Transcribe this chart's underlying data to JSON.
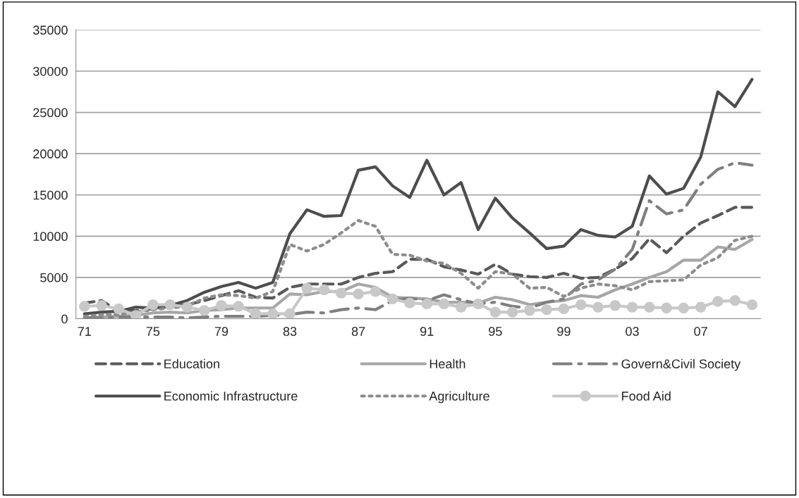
{
  "chart_data": {
    "type": "line",
    "categories": [
      "71",
      null,
      null,
      null,
      "75",
      null,
      null,
      null,
      "79",
      null,
      null,
      null,
      "83",
      null,
      null,
      null,
      "87",
      null,
      null,
      null,
      "91",
      null,
      null,
      null,
      "95",
      null,
      null,
      null,
      "99",
      null,
      null,
      null,
      "03",
      null,
      null,
      null,
      "07",
      null,
      null,
      null
    ],
    "series": [
      {
        "name": "Education",
        "color": "#595959",
        "line_style": "dashed",
        "values": [
          1900,
          2200,
          900,
          1000,
          1200,
          1500,
          1700,
          2200,
          2800,
          3400,
          2600,
          2500,
          3800,
          4200,
          4200,
          4200,
          5000,
          5500,
          5700,
          7200,
          7200,
          6300,
          5900,
          5400,
          6600,
          5400,
          5100,
          5000,
          5500,
          4900,
          5000,
          6000,
          7300,
          9700,
          8000,
          10000,
          11600,
          12500,
          13500,
          13500
        ]
      },
      {
        "name": "Health",
        "color": "#a6a6a6",
        "line_style": "solid",
        "values": [
          100,
          200,
          300,
          400,
          700,
          800,
          700,
          1000,
          1100,
          1300,
          1300,
          1300,
          3000,
          2900,
          3300,
          3300,
          4200,
          3800,
          2600,
          2500,
          2400,
          2000,
          2000,
          1900,
          2600,
          2300,
          1700,
          2000,
          2200,
          2800,
          2600,
          3500,
          4200,
          5000,
          5700,
          7100,
          7100,
          8700,
          8400,
          9600
        ]
      },
      {
        "name": "Govern&Civil Society",
        "color": "#7f7f7f",
        "line_style": "dashdot",
        "values": [
          100,
          100,
          200,
          200,
          200,
          200,
          100,
          200,
          300,
          300,
          300,
          400,
          500,
          800,
          700,
          1100,
          1300,
          1100,
          2200,
          2500,
          2200,
          2900,
          2300,
          1800,
          2000,
          1500,
          1300,
          2000,
          2400,
          4200,
          4700,
          6000,
          8400,
          14300,
          12700,
          13200,
          16300,
          18100,
          18900,
          18600
        ]
      },
      {
        "name": "Economic Infrastructure",
        "color": "#4d4d4d",
        "line_style": "solid",
        "values": [
          600,
          800,
          900,
          1400,
          1300,
          1600,
          2200,
          3200,
          3900,
          4400,
          3700,
          4400,
          10300,
          13200,
          12400,
          12500,
          18000,
          18400,
          16100,
          14700,
          19200,
          15000,
          16500,
          10800,
          14600,
          12200,
          10400,
          8500,
          8800,
          10800,
          10100,
          9900,
          11200,
          17300,
          15100,
          15800,
          19600,
          27500,
          25700,
          29000
        ]
      },
      {
        "name": "Agriculture",
        "color": "#8c8c8c",
        "line_style": "dotted",
        "values": [
          300,
          500,
          500,
          800,
          1100,
          1300,
          1500,
          2500,
          2900,
          2800,
          2500,
          3300,
          9000,
          8200,
          9000,
          10400,
          11900,
          11200,
          7800,
          7700,
          7000,
          6700,
          5500,
          3700,
          5700,
          5400,
          3700,
          3800,
          2700,
          3700,
          4200,
          4000,
          3500,
          4500,
          4600,
          4700,
          6500,
          7400,
          9500,
          10000
        ]
      },
      {
        "name": "Food Aid",
        "color": "#c8c8c8",
        "line_style": "solid",
        "marker": "circle",
        "values": [
          1500,
          1600,
          1200,
          400,
          1700,
          1700,
          1400,
          1000,
          1600,
          1500,
          600,
          600,
          600,
          3700,
          3500,
          3100,
          3000,
          3300,
          2400,
          1900,
          1800,
          1800,
          1400,
          1800,
          800,
          800,
          1000,
          1100,
          1200,
          1700,
          1400,
          1600,
          1400,
          1400,
          1300,
          1300,
          1400,
          2100,
          2200,
          1700
        ]
      }
    ],
    "ylim": [
      0,
      35000
    ],
    "yticks": [
      0,
      5000,
      10000,
      15000,
      20000,
      25000,
      30000,
      35000
    ],
    "grid": "y",
    "legend": "bottom"
  }
}
